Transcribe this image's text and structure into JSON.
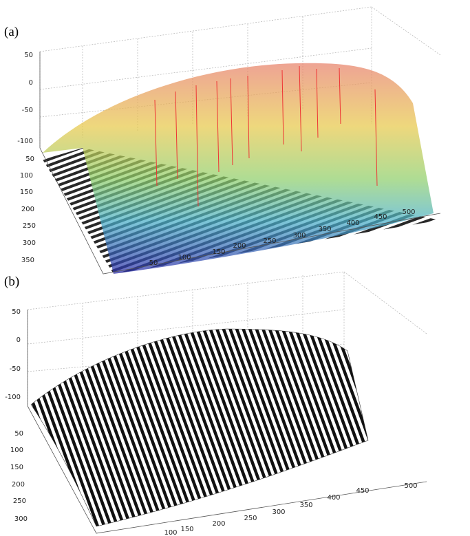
{
  "panels": [
    {
      "label": "(a)",
      "z_ticks": [
        "50",
        "0",
        "-50",
        "-100"
      ],
      "y_ticks": [
        "50",
        "100",
        "150",
        "200",
        "250",
        "300",
        "350"
      ],
      "x_ticks": [
        "50",
        "100",
        "150",
        "200",
        "250",
        "300",
        "350",
        "400",
        "450",
        "500"
      ]
    },
    {
      "label": "(b)",
      "z_ticks": [
        "50",
        "0",
        "-50",
        "-100"
      ],
      "y_ticks": [
        "50",
        "100",
        "150",
        "200",
        "250",
        "300"
      ],
      "x_ticks": [
        "100",
        "150",
        "200",
        "250",
        "300",
        "350",
        "400",
        "450",
        "500"
      ]
    }
  ]
}
